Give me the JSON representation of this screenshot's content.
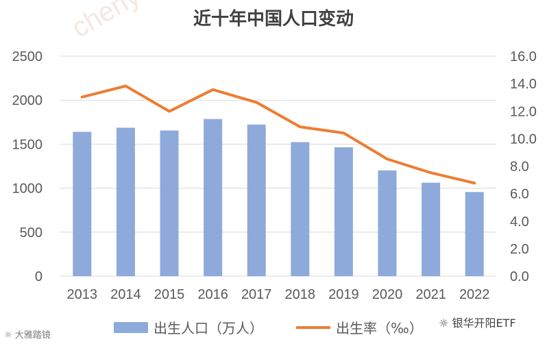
{
  "chart_data": {
    "type": "bar+line",
    "title": "近十年中国人口变动",
    "categories": [
      "2013",
      "2014",
      "2015",
      "2016",
      "2017",
      "2018",
      "2019",
      "2020",
      "2021",
      "2022"
    ],
    "series": [
      {
        "name": "出生人口（万人）",
        "type": "bar",
        "axis": "left",
        "color": "#8eaadb",
        "values": [
          1640,
          1687,
          1655,
          1786,
          1723,
          1523,
          1465,
          1202,
          1062,
          956
        ]
      },
      {
        "name": "出生率（‰）",
        "type": "line",
        "axis": "right",
        "color": "#ed7d31",
        "values": [
          13.03,
          13.83,
          11.99,
          13.57,
          12.64,
          10.86,
          10.41,
          8.52,
          7.52,
          6.77
        ]
      }
    ],
    "y_left": {
      "min": 0,
      "max": 2500,
      "ticks": [
        "0",
        "500",
        "1000",
        "1500",
        "2000",
        "2500"
      ]
    },
    "y_right": {
      "min": 0,
      "max": 16,
      "ticks": [
        "0.0",
        "2.0",
        "4.0",
        "6.0",
        "8.0",
        "10.0",
        "12.0",
        "14.0",
        "16.0"
      ]
    },
    "grid": true,
    "legend": "bottom"
  },
  "footer": {
    "left_source": "大雅踏镜",
    "right_source": "银华开阳ETF"
  },
  "colors": {
    "bar": "#8eaadb",
    "line": "#ed7d31",
    "grid": "#d9d9d9",
    "text": "#595959",
    "title": "#404040"
  }
}
